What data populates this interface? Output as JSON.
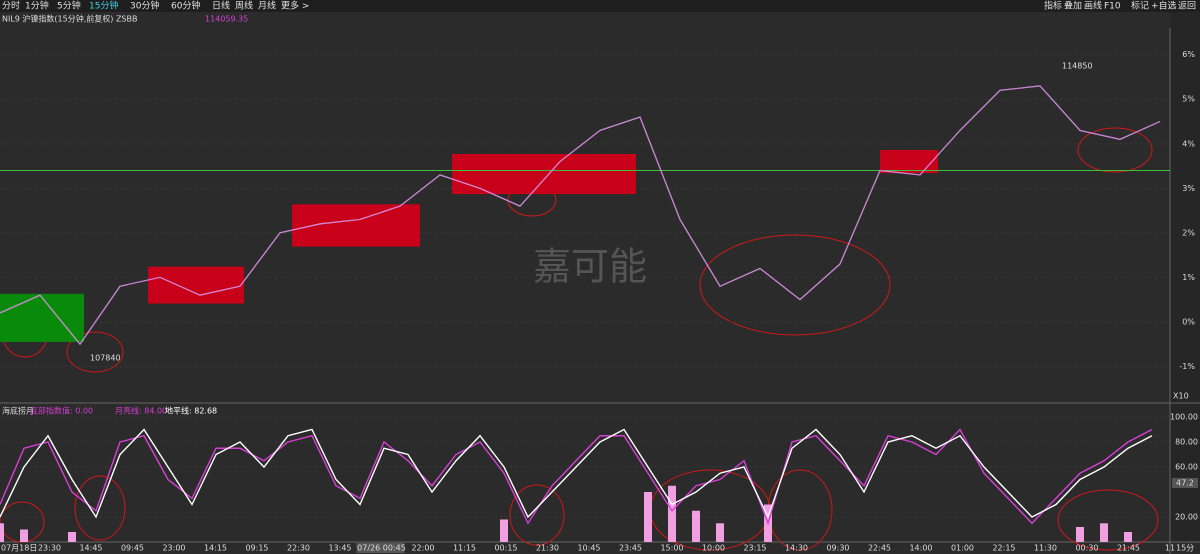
{
  "toolbar": [
    "分时",
    "1分钟",
    "5分钟",
    "15分钟",
    "30分钟",
    "60分钟",
    "日线",
    "周线",
    "月线",
    "更多 >"
  ],
  "active_tab": "15分钟",
  "right_toolbar": [
    "指标",
    "叠加",
    "画线",
    "F10",
    "标记",
    "+自选",
    "返回"
  ],
  "info": {
    "symbol": "NIL9 沪镍指数(15分钟,前复权) ZSBB",
    "price": "114059.35"
  },
  "main_chart": {
    "type": "line",
    "ylim": [
      -1.8,
      6.6
    ],
    "yticks": [
      {
        "value": 6,
        "label": "6%"
      },
      {
        "value": 5,
        "label": "5%"
      },
      {
        "value": 4,
        "label": "4%"
      },
      {
        "value": 3,
        "label": "3%"
      },
      {
        "value": 2,
        "label": "2%"
      },
      {
        "value": 1,
        "label": "1%"
      },
      {
        "value": 0,
        "label": "0%"
      },
      {
        "value": -1,
        "label": "-1%"
      }
    ],
    "values": [
      0.2,
      0.6,
      -0.5,
      0.8,
      1.0,
      0.6,
      0.8,
      2.0,
      2.2,
      2.3,
      2.6,
      3.3,
      3.0,
      2.6,
      3.6,
      4.3,
      4.6,
      2.3,
      0.8,
      1.2,
      0.5,
      1.3,
      3.4,
      3.3,
      4.3,
      5.2,
      5.3,
      4.3,
      4.1,
      4.5
    ],
    "reference_line": 3.4,
    "boxes": [
      {
        "color": "#0a8a0a",
        "start": 0,
        "end": 2.1,
        "high": 0.63,
        "low": -0.45
      },
      {
        "color": "#c8001a",
        "start": 3.7,
        "end": 6.1,
        "high": 1.24,
        "low": 0.41
      },
      {
        "color": "#c8001a",
        "start": 7.3,
        "end": 10.5,
        "high": 2.64,
        "low": 1.69
      },
      {
        "color": "#c8001a",
        "start": 11.3,
        "end": 15.9,
        "high": 3.77,
        "low": 2.87
      },
      {
        "color": "#c8001a",
        "start": 22,
        "end": 23.45,
        "high": 3.86,
        "low": 3.34
      }
    ],
    "annotations": [
      "107840",
      "114850"
    ],
    "scale_label": "X10",
    "watermark": "嘉可能"
  },
  "indicator": {
    "name": "海底捞月",
    "labels": [
      "底部指数值: 0.00",
      "月亮线: 84.00",
      "地平线: 82.68"
    ],
    "ylim": [
      0,
      108
    ],
    "yticks": [
      {
        "value": 100,
        "label": "100.00"
      },
      {
        "value": 80,
        "label": "80.00"
      },
      {
        "value": 60,
        "label": "60.00"
      },
      {
        "value": 20,
        "label": "20.00"
      }
    ],
    "current": {
      "value": 47.2,
      "label": "47.2"
    },
    "series": [
      {
        "name": "white",
        "color": "#ffffff",
        "values": [
          20,
          60,
          85,
          50,
          20,
          70,
          90,
          60,
          30,
          70,
          80,
          60,
          85,
          90,
          50,
          30,
          75,
          70,
          40,
          65,
          85,
          60,
          20,
          40,
          60,
          80,
          90,
          60,
          30,
          40,
          55,
          60,
          20,
          75,
          90,
          70,
          40,
          80,
          85,
          75,
          85,
          60,
          40,
          20,
          30,
          50,
          60,
          75,
          85
        ]
      },
      {
        "name": "magenta",
        "color": "#d63fd6",
        "values": [
          30,
          75,
          80,
          40,
          25,
          80,
          85,
          50,
          35,
          75,
          75,
          65,
          80,
          85,
          45,
          35,
          80,
          65,
          45,
          70,
          80,
          55,
          15,
          45,
          65,
          85,
          85,
          55,
          25,
          45,
          50,
          65,
          15,
          80,
          85,
          65,
          45,
          85,
          80,
          70,
          90,
          55,
          35,
          15,
          35,
          55,
          65,
          80,
          90
        ]
      }
    ],
    "bars": [
      15,
      10,
      0,
      8,
      0,
      0,
      0,
      0,
      0,
      0,
      0,
      0,
      0,
      0,
      0,
      0,
      0,
      0,
      0,
      0,
      0,
      18,
      0,
      0,
      0,
      0,
      0,
      40,
      45,
      25,
      15,
      0,
      30,
      0,
      0,
      0,
      0,
      0,
      0,
      0,
      0,
      0,
      0,
      0,
      0,
      12,
      15,
      8,
      0
    ]
  },
  "x_labels": [
    "07月18日",
    "23:30",
    "14:45",
    "09:45",
    "23:00",
    "14:15",
    "09:15",
    "22:30",
    "13:45",
    "07/26 00:45",
    "22:00",
    "11:15",
    "00:15",
    "21:30",
    "10:45",
    "23:45",
    "15:00",
    "10:00",
    "23:15",
    "14:30",
    "09:30",
    "22:45",
    "14:00",
    "01:00",
    "22:15",
    "11:30",
    "00:30",
    "21:45",
    "11"
  ],
  "period_label": "15分"
}
